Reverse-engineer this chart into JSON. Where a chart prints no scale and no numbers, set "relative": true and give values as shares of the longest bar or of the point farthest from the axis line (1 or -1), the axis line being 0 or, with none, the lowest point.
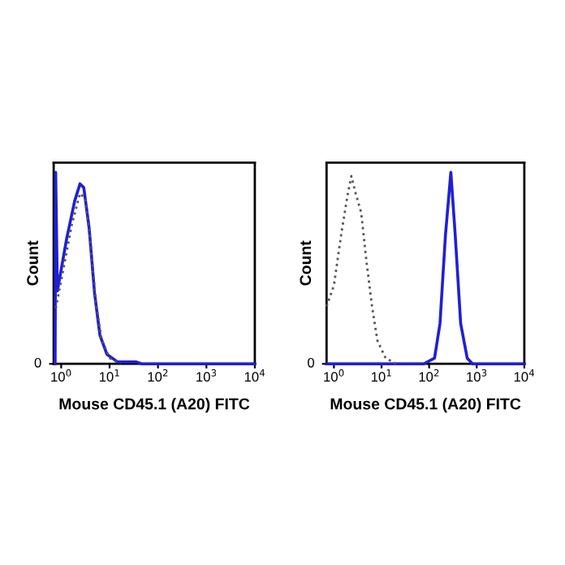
{
  "chart_data": [
    {
      "type": "line",
      "relative": true,
      "log": "x",
      "xlabel": "Mouse CD45.1 (A20) FITC",
      "ylabel": "Count",
      "xlim": [
        0.7,
        10000
      ],
      "xticks": [
        {
          "value": 1,
          "label": "10$^{0}$"
        },
        {
          "value": 10,
          "label": "10$^{1}$"
        },
        {
          "value": 100,
          "label": "10$^{2}$"
        },
        {
          "value": 1000,
          "label": "10$^{3}$"
        },
        {
          "value": 10000,
          "label": "10$^{4}$"
        }
      ],
      "annotations": [
        "0"
      ],
      "grid": false,
      "legend": false,
      "series": [
        {
          "color": "#555555",
          "line_style": "dotted",
          "x": [
            0.776,
            1.14,
            1.67,
            2.45,
            3.16,
            4.08,
            5.27,
            6.81,
            10,
            16.7
          ],
          "values": [
            0.29,
            0.51,
            0.73,
            0.89,
            0.86,
            0.62,
            0.31,
            0.13,
            0.03,
            0
          ]
        },
        {
          "color": "#1f1fd6",
          "line_style": "solid",
          "x": [
            0.75,
            0.77,
            0.836,
            1.29,
            1.9,
            2.45,
            2.93,
            3.78,
            4.89,
            6.31,
            8.8,
            14.7,
            35.9,
            46.4,
            10000
          ],
          "values": [
            0,
            1.0,
            0.38,
            0.65,
            0.85,
            0.94,
            0.92,
            0.71,
            0.37,
            0.15,
            0.05,
            0.01,
            0.01,
            0,
            0
          ]
        }
      ]
    },
    {
      "type": "line",
      "relative": true,
      "log": "x",
      "xlabel": "Mouse CD45.1 (A20) FITC",
      "ylabel": "Count",
      "xlim": [
        0.7,
        10000
      ],
      "xticks": [
        {
          "value": 1,
          "label": "10$^{0}$"
        },
        {
          "value": 10,
          "label": "10$^{1}$"
        },
        {
          "value": 100,
          "label": "10$^{2}$"
        },
        {
          "value": 1000,
          "label": "10$^{3}$"
        },
        {
          "value": 10000,
          "label": "10$^{4}$"
        }
      ],
      "annotations": [
        "0"
      ],
      "grid": false,
      "legend": false,
      "series": [
        {
          "color": "#555555",
          "line_style": "dotted",
          "x": [
            0.7,
            1.0,
            1.41,
            1.93,
            2.32,
            2.86,
            3.73,
            4.85,
            6.31,
            8.21,
            12.2,
            20.6
          ],
          "values": [
            0.3,
            0.41,
            0.67,
            0.88,
            0.98,
            0.89,
            0.79,
            0.53,
            0.3,
            0.12,
            0.03,
            0
          ]
        },
        {
          "color": "#1f1fd6",
          "line_style": "solid",
          "x": [
            0.7,
            76.9,
            130,
            169,
            220,
            286,
            354,
            460,
            631,
            820,
            10000
          ],
          "values": [
            0,
            0,
            0.03,
            0.21,
            0.67,
            1.0,
            0.67,
            0.21,
            0.03,
            0,
            0
          ]
        }
      ]
    }
  ]
}
